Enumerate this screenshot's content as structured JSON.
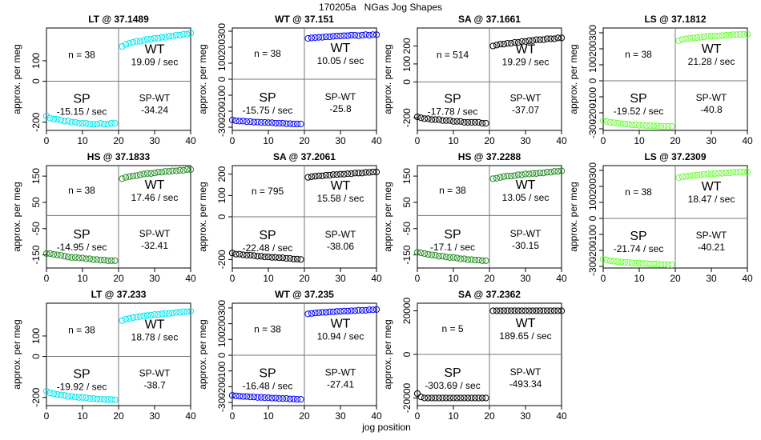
{
  "figure": {
    "title": "170205a   NGas Jog Shapes",
    "xlabel": "jog position",
    "ylabel": "approx. per meg",
    "colors": {
      "LT": "#00e5ee",
      "WT": "#0000ff",
      "SA": "#000000",
      "LS": "#66ff33",
      "HS": "#228b22"
    }
  },
  "chart_data": [
    {
      "type": "scatter",
      "title": "LT @ 37.1489",
      "species": "LT",
      "n_text": "n = 38",
      "wt_label": "WT",
      "wt_rate": "19.09 / sec",
      "sp_label": "SP",
      "sp_rate": "-15.15 / sec",
      "diff_label": "SP-WT",
      "diff_value": "-34.24",
      "x": [
        0,
        40
      ],
      "ylim": [
        -240,
        260
      ],
      "yticks": [
        -200,
        0,
        100
      ],
      "sp_values": [
        -170,
        -180,
        -185,
        -185,
        -190,
        -195,
        -195,
        -200,
        -200,
        -205,
        -205,
        -205,
        -210,
        -210,
        -210,
        -205,
        -210,
        -210,
        -205,
        -205
      ],
      "wt_values": [
        170,
        180,
        185,
        190,
        195,
        195,
        200,
        205,
        205,
        210,
        210,
        215,
        215,
        220,
        220,
        225,
        225,
        230,
        230,
        235
      ]
    },
    {
      "type": "scatter",
      "title": "WT @ 37.151",
      "species": "WT",
      "n_text": "n = 38",
      "wt_label": "WT",
      "wt_rate": "10.05 / sec",
      "sp_label": "SP",
      "sp_rate": "-15.75 / sec",
      "diff_label": "SP-WT",
      "diff_value": "-25.8",
      "x": [
        0,
        40
      ],
      "ylim": [
        -320,
        320
      ],
      "yticks": [
        -300,
        -200,
        -100,
        0,
        100,
        200,
        300
      ],
      "sp_values": [
        -255,
        -260,
        -262,
        -262,
        -265,
        -265,
        -268,
        -268,
        -270,
        -270,
        -272,
        -272,
        -275,
        -275,
        -275,
        -278,
        -278,
        -280,
        -280,
        -280
      ],
      "wt_values": [
        255,
        258,
        260,
        262,
        262,
        265,
        265,
        268,
        270,
        270,
        272,
        272,
        275,
        275,
        272,
        275,
        278,
        275,
        278,
        278
      ]
    },
    {
      "type": "scatter",
      "title": "SA @ 37.1661",
      "species": "SA",
      "n_text": "n = 514",
      "wt_label": "WT",
      "wt_rate": "19.29 / sec",
      "sp_label": "SP",
      "sp_rate": "-17.78 / sec",
      "diff_label": "SP-WT",
      "diff_value": "-37.07",
      "x": [
        0,
        40
      ],
      "ylim": [
        -270,
        300
      ],
      "yticks": [
        -200,
        0,
        100,
        200
      ],
      "sp_values": [
        -195,
        -200,
        -205,
        -205,
        -210,
        -210,
        -210,
        -215,
        -215,
        -215,
        -220,
        -220,
        -220,
        -225,
        -225,
        -225,
        -225,
        -225,
        -230,
        -230
      ],
      "wt_values": [
        200,
        205,
        210,
        210,
        215,
        215,
        220,
        220,
        225,
        225,
        230,
        230,
        235,
        235,
        235,
        240,
        240,
        240,
        245,
        245
      ]
    },
    {
      "type": "scatter",
      "title": "LS @ 37.1812",
      "species": "LS",
      "n_text": "n = 38",
      "wt_label": "WT",
      "wt_rate": "21.28 / sec",
      "sp_label": "SP",
      "sp_rate": "-19.52 / sec",
      "diff_label": "SP-WT",
      "diff_value": "-40.8",
      "x": [
        0,
        40
      ],
      "ylim": [
        -310,
        330
      ],
      "yticks": [
        -300,
        -200,
        -100,
        0,
        100,
        200,
        300
      ],
      "sp_values": [
        -250,
        -255,
        -260,
        -262,
        -265,
        -268,
        -270,
        -272,
        -275,
        -275,
        -278,
        -278,
        -280,
        -280,
        -282,
        -282,
        -285,
        -285,
        -285,
        -285
      ],
      "wt_values": [
        250,
        258,
        262,
        265,
        268,
        270,
        272,
        275,
        278,
        278,
        280,
        280,
        282,
        285,
        285,
        288,
        288,
        290,
        290,
        292
      ]
    },
    {
      "type": "scatter",
      "title": "HS @ 37.1833",
      "species": "HS",
      "n_text": "n = 38",
      "wt_label": "WT",
      "wt_rate": "17.46 / sec",
      "sp_label": "SP",
      "sp_rate": "-14.95 / sec",
      "diff_label": "SP-WT",
      "diff_value": "-32.41",
      "x": [
        0,
        40
      ],
      "ylim": [
        -200,
        190
      ],
      "yticks": [
        -150,
        -50,
        50,
        150
      ],
      "sp_values": [
        -145,
        -145,
        -148,
        -150,
        -152,
        -155,
        -158,
        -160,
        -160,
        -162,
        -162,
        -165,
        -165,
        -168,
        -168,
        -170,
        -170,
        -172,
        -172,
        -172
      ],
      "wt_values": [
        140,
        145,
        148,
        150,
        152,
        155,
        158,
        160,
        160,
        162,
        165,
        165,
        168,
        168,
        170,
        170,
        172,
        172,
        175,
        175
      ]
    },
    {
      "type": "scatter",
      "title": "SA @ 37.2061",
      "species": "SA",
      "n_text": "n = 795",
      "wt_label": "WT",
      "wt_rate": "15.58 / sec",
      "sp_label": "SP",
      "sp_rate": "-22.48 / sec",
      "diff_label": "SP-WT",
      "diff_value": "-38.06",
      "x": [
        0,
        40
      ],
      "ylim": [
        -240,
        240
      ],
      "yticks": [
        -200,
        0,
        100,
        200
      ],
      "sp_values": [
        -170,
        -175,
        -175,
        -178,
        -180,
        -180,
        -182,
        -185,
        -185,
        -188,
        -188,
        -190,
        -190,
        -192,
        -192,
        -195,
        -195,
        -198,
        -198,
        -200
      ],
      "wt_values": [
        185,
        188,
        190,
        192,
        192,
        195,
        195,
        198,
        198,
        200,
        200,
        202,
        202,
        205,
        205,
        205,
        208,
        208,
        210,
        210
      ]
    },
    {
      "type": "scatter",
      "title": "HS @ 37.2288",
      "species": "HS",
      "n_text": "n = 38",
      "wt_label": "WT",
      "wt_rate": "13.05 / sec",
      "sp_label": "SP",
      "sp_rate": "-17.1 / sec",
      "diff_label": "SP-WT",
      "diff_value": "-30.15",
      "x": [
        0,
        40
      ],
      "ylim": [
        -200,
        190
      ],
      "yticks": [
        -150,
        -50,
        50,
        150
      ],
      "sp_values": [
        -140,
        -142,
        -145,
        -148,
        -150,
        -152,
        -155,
        -155,
        -158,
        -160,
        -160,
        -162,
        -165,
        -165,
        -168,
        -168,
        -170,
        -170,
        -172,
        -172
      ],
      "wt_values": [
        140,
        142,
        145,
        148,
        150,
        150,
        152,
        155,
        155,
        158,
        158,
        160,
        160,
        162,
        162,
        165,
        165,
        168,
        168,
        170
      ]
    },
    {
      "type": "scatter",
      "title": "LS @ 37.2309",
      "species": "LS",
      "n_text": "n = 38",
      "wt_label": "WT",
      "wt_rate": "18.47 / sec",
      "sp_label": "SP",
      "sp_rate": "-21.74 / sec",
      "diff_label": "SP-WT",
      "diff_value": "-40.21",
      "x": [
        0,
        40
      ],
      "ylim": [
        -310,
        330
      ],
      "yticks": [
        -300,
        -200,
        -100,
        0,
        100,
        200,
        300
      ],
      "sp_values": [
        -255,
        -260,
        -265,
        -268,
        -270,
        -272,
        -275,
        -275,
        -278,
        -280,
        -280,
        -282,
        -282,
        -285,
        -285,
        -285,
        -288,
        -288,
        -290,
        -290
      ],
      "wt_values": [
        255,
        260,
        262,
        265,
        268,
        270,
        272,
        275,
        278,
        278,
        280,
        282,
        282,
        285,
        285,
        288,
        288,
        290,
        290,
        292
      ]
    },
    {
      "type": "scatter",
      "title": "LT @ 37.233",
      "species": "LT",
      "n_text": "n = 38",
      "wt_label": "WT",
      "wt_rate": "18.78 / sec",
      "sp_label": "SP",
      "sp_rate": "-19.92 / sec",
      "diff_label": "SP-WT",
      "diff_value": "-38.7",
      "x": [
        0,
        40
      ],
      "ylim": [
        -240,
        260
      ],
      "yticks": [
        -200,
        0,
        100
      ],
      "sp_values": [
        -170,
        -178,
        -182,
        -185,
        -188,
        -190,
        -195,
        -195,
        -198,
        -200,
        -200,
        -202,
        -205,
        -205,
        -208,
        -208,
        -210,
        -210,
        -210,
        -212
      ],
      "wt_values": [
        175,
        182,
        185,
        190,
        192,
        195,
        198,
        200,
        202,
        205,
        205,
        208,
        210,
        210,
        212,
        215,
        215,
        218,
        218,
        220
      ]
    },
    {
      "type": "scatter",
      "title": "WT @ 37.235",
      "species": "WT",
      "n_text": "n = 38",
      "wt_label": "WT",
      "wt_rate": "10.94 / sec",
      "sp_label": "SP",
      "sp_rate": "-16.48 / sec",
      "diff_label": "SP-WT",
      "diff_value": "-27.41",
      "x": [
        0,
        40
      ],
      "ylim": [
        -320,
        330
      ],
      "yticks": [
        -300,
        -200,
        -100,
        0,
        100,
        200,
        300
      ],
      "sp_values": [
        -255,
        -258,
        -260,
        -262,
        -262,
        -265,
        -265,
        -268,
        -268,
        -270,
        -270,
        -272,
        -272,
        -275,
        -275,
        -275,
        -278,
        -278,
        -280,
        -280
      ],
      "wt_values": [
        262,
        265,
        268,
        270,
        272,
        272,
        275,
        275,
        278,
        278,
        280,
        280,
        282,
        282,
        285,
        285,
        285,
        288,
        288,
        290
      ]
    },
    {
      "type": "scatter",
      "title": "SA @ 37.2362",
      "species": "SA",
      "n_text": "n = 5",
      "wt_label": "WT",
      "wt_rate": "189.65 / sec",
      "sp_label": "SP",
      "sp_rate": "-303.69 / sec",
      "diff_label": "SP-WT",
      "diff_value": "-493.34",
      "x": [
        0,
        40
      ],
      "ylim": [
        -23500,
        23500
      ],
      "yticks": [
        -20000,
        0,
        20000
      ],
      "sp_values": [
        -18000,
        -19500,
        -20000,
        -20000,
        -20000,
        -20000,
        -20000,
        -20000,
        -20000,
        -20000,
        -20000,
        -20000,
        -20000,
        -20000,
        -20000,
        -20000,
        -20000,
        -20000,
        -20000,
        -20000
      ],
      "wt_values": [
        20000,
        20000,
        20000,
        20000,
        20000,
        20000,
        20000,
        20000,
        20000,
        20000,
        20000,
        20000,
        20000,
        20000,
        20000,
        20000,
        20000,
        20000,
        20000,
        20000
      ]
    }
  ]
}
